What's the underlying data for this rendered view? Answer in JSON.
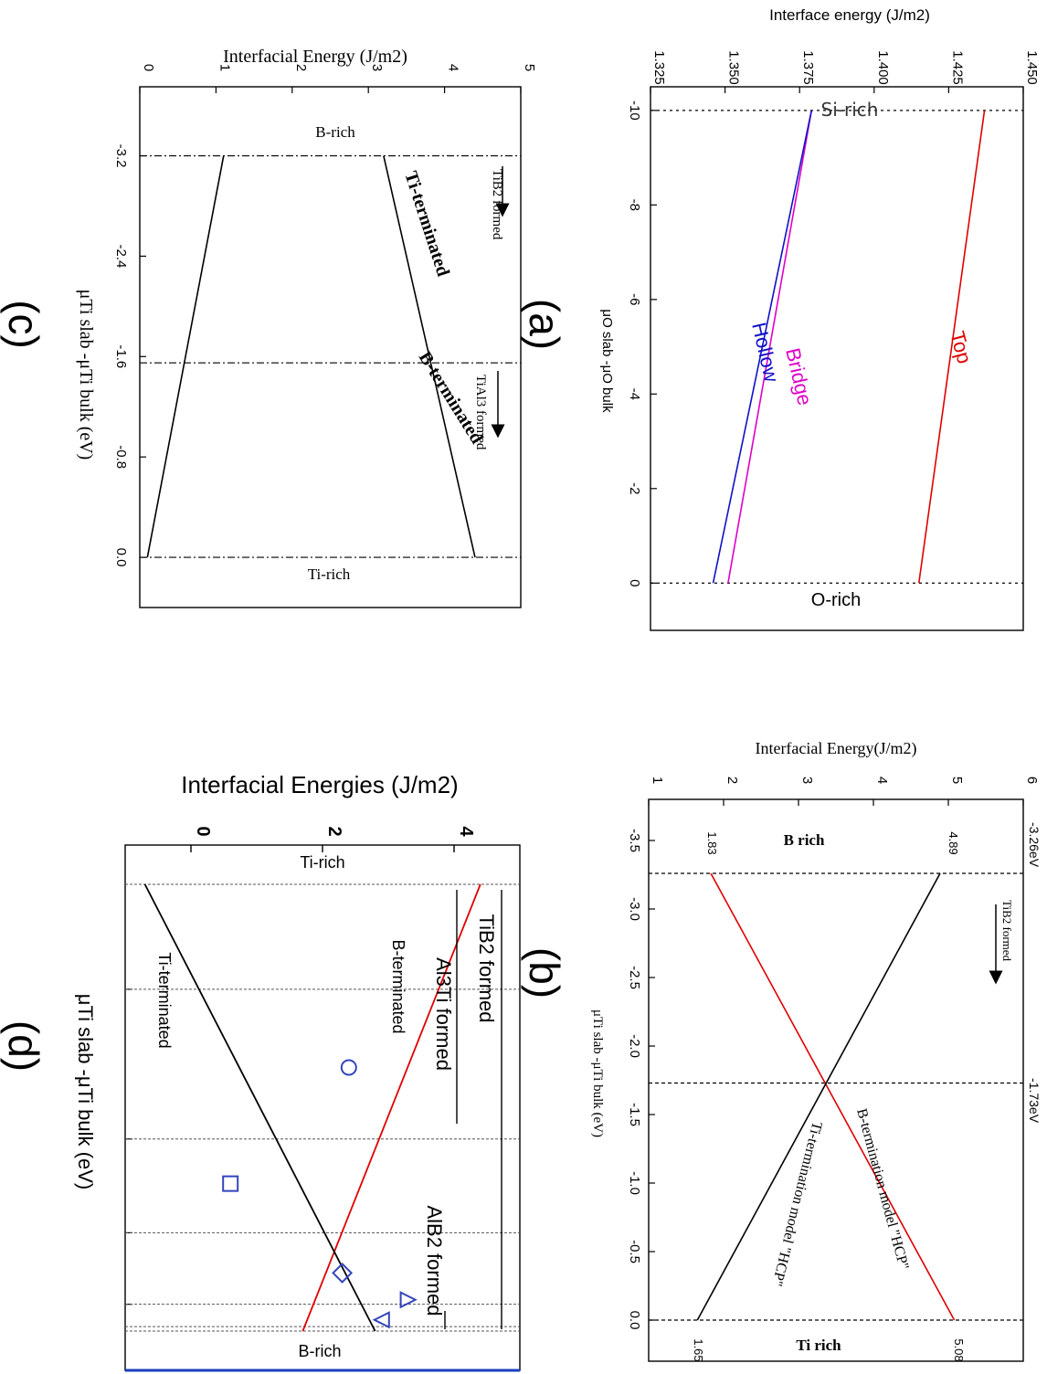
{
  "chart_data": [
    {
      "panel": "(a)",
      "type": "line",
      "xlabel": "μO slab -μO bulk",
      "ylabel": "Interface energy (J/m2)",
      "x_ticks": [
        "-10",
        "-8",
        "-6",
        "-4",
        "-2",
        "0"
      ],
      "y_ticks": [
        "1.325",
        "1.350",
        "1.375",
        "1.400",
        "1.425",
        "1.450"
      ],
      "xlim": [
        -10.5,
        1
      ],
      "ylim": [
        1.325,
        1.45
      ],
      "region_labels": {
        "left": "Si-rich",
        "right": "O-rich"
      },
      "series": [
        {
          "name": "Top",
          "color": "#e00000",
          "x": [
            -10,
            0
          ],
          "y": [
            1.437,
            1.415
          ]
        },
        {
          "name": "Bridge",
          "color": "#e000c8",
          "x": [
            -10,
            0
          ],
          "y": [
            1.379,
            1.351
          ]
        },
        {
          "name": "Hollow",
          "color": "#1010c8",
          "x": [
            -10,
            0
          ],
          "y": [
            1.379,
            1.346
          ]
        }
      ],
      "vlines": [
        -10,
        0
      ]
    },
    {
      "panel": "(b)",
      "type": "line",
      "xlabel": "μTi slab -μTi bulk (eV)",
      "ylabel": "Interfacial Energy(J/m2)",
      "x_ticks": [
        "-3.5",
        "-3.0",
        "-2.5",
        "-2.0",
        "-1.5",
        "-1.0",
        "-0.5",
        "0.0"
      ],
      "y_ticks": [
        "1",
        "2",
        "3",
        "4",
        "5",
        "6"
      ],
      "xlim": [
        -3.8,
        0.3
      ],
      "ylim": [
        1,
        6
      ],
      "region_labels": {
        "left": "B  rich",
        "right": "Ti  rich"
      },
      "top_labels": [
        "-3.26eV",
        "-1.73eV"
      ],
      "annotation": "TiB2 formed",
      "series": [
        {
          "name": "B-termination model \"HCP\"",
          "color": "#e00000",
          "x": [
            -3.26,
            0
          ],
          "y": [
            1.83,
            5.08
          ],
          "end_labels": [
            "1.83",
            "5.08"
          ]
        },
        {
          "name": "Ti-termination model \"HCP\"",
          "color": "#000000",
          "x": [
            -3.26,
            0
          ],
          "y": [
            4.89,
            1.65
          ],
          "end_labels": [
            "4.89",
            "1.65"
          ]
        }
      ],
      "vlines": [
        -3.26,
        -1.73,
        0
      ]
    },
    {
      "panel": "(c)",
      "type": "line",
      "xlabel": "μTi slab -μTi bulk (eV)",
      "ylabel": "Interfacial Energy (J/m2)",
      "x_ticks": [
        "-3.2",
        "-2.4",
        "-1.6",
        "-0.8",
        "0.0"
      ],
      "y_ticks": [
        "0",
        "1",
        "2",
        "3",
        "4",
        "5"
      ],
      "xlim": [
        -3.75,
        0.4
      ],
      "ylim": [
        0,
        5
      ],
      "region_labels": {
        "left": "B-rich",
        "right": "Ti-rich"
      },
      "annotations": [
        "TiB2 formed",
        "TiAl3 formed"
      ],
      "series": [
        {
          "name": "Ti-terminated",
          "color": "#000000",
          "x": [
            -3.2,
            0
          ],
          "y": [
            1.1,
            0.1
          ]
        },
        {
          "name": "B-terminated",
          "color": "#000000",
          "x": [
            -3.2,
            0
          ],
          "y": [
            3.2,
            4.4
          ]
        }
      ],
      "vlines": [
        -3.2,
        -1.55,
        0
      ]
    },
    {
      "panel": "(d)",
      "type": "line",
      "xlabel": "μTi slab -μTi bulk (eV)",
      "ylabel": "Interfacial Energies (J/m2)",
      "y_ticks": [
        "0",
        "2",
        "4"
      ],
      "ylim": [
        -1,
        5
      ],
      "region_labels": {
        "left": "Ti-rich",
        "right": "B-rich"
      },
      "annotations": [
        "TiB2 formed",
        "Al3Ti formed",
        "AlB2 formed"
      ],
      "series": [
        {
          "name": "B-terminated",
          "color": "#e00000",
          "x": [
            0,
            1
          ],
          "y": [
            4.4,
            1.7
          ]
        },
        {
          "name": "Ti-terminated",
          "color": "#000000",
          "x": [
            0,
            1
          ],
          "y": [
            -0.7,
            2.8
          ]
        }
      ],
      "markers": [
        {
          "shape": "circle",
          "x": 0.41,
          "y": 2.4
        },
        {
          "shape": "square",
          "x": 0.67,
          "y": 0.6
        },
        {
          "shape": "diamond",
          "x": 0.87,
          "y": 2.3
        },
        {
          "shape": "triangle-right",
          "x": 0.93,
          "y": 3.3
        },
        {
          "shape": "triangle-left",
          "x": 0.975,
          "y": 2.9
        }
      ]
    }
  ],
  "panel_labels": [
    "(a)",
    "(b)",
    "(c)",
    "(d)"
  ]
}
